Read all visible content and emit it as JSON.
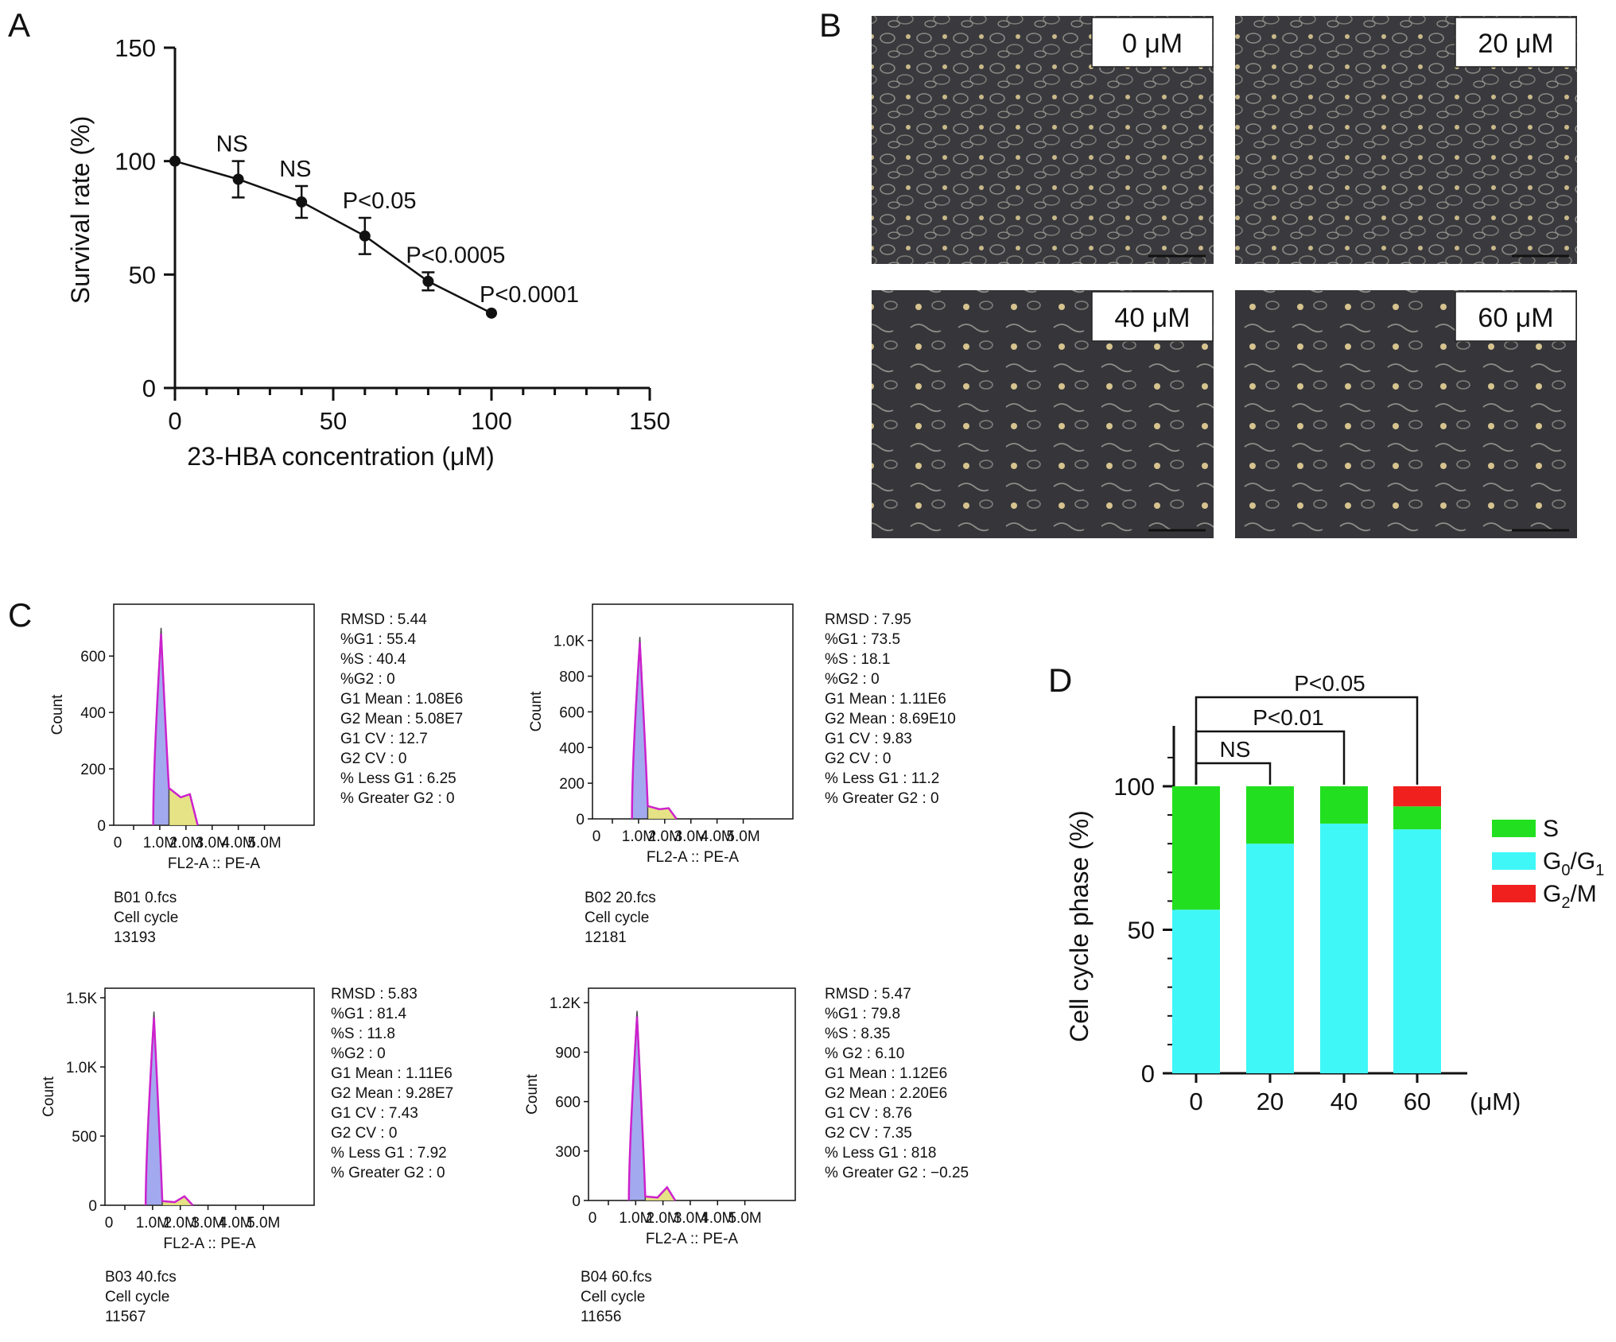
{
  "panels": {
    "A": "A",
    "B": "B",
    "C": "C",
    "D": "D"
  },
  "colors": {
    "s_phase": "#22e01f",
    "g0g1_phase": "#3ff7f7",
    "g2m_phase": "#f0201f",
    "histogram_outline": "#cc22cc",
    "histogram_fill": "#9aa0ee",
    "s_fill_histogram": "#e3e07a",
    "micrograph_bg": "#3a3a3e"
  },
  "micrographs": {
    "labels": [
      "0 μM",
      "20 μM",
      "40 μM",
      "60 μM"
    ]
  },
  "chart_data": [
    {
      "id": "A",
      "type": "line",
      "xlabel": "23-HBA concentration (μM)",
      "ylabel": "Survival rate (%)",
      "xlim": [
        0,
        150
      ],
      "ylim": [
        0,
        150
      ],
      "xticks": [
        "0",
        "50",
        "100",
        "150"
      ],
      "yticks": [
        "0",
        "50",
        "100",
        "150"
      ],
      "x": [
        0,
        20,
        40,
        60,
        80,
        100
      ],
      "y": [
        100,
        92,
        82,
        67,
        47,
        33
      ],
      "error": [
        0,
        8,
        7,
        8,
        4,
        0
      ],
      "annotations": [
        "",
        "NS",
        "NS",
        "P<0.05",
        "P<0.0005",
        "P<0.0001"
      ]
    },
    {
      "id": "C",
      "type": "area",
      "charts": [
        {
          "ylabel": "Count",
          "xlabel": "FL2-A :: PE-A",
          "xticks": [
            "0",
            "1.0M",
            "2.0M",
            "3.0M",
            "4.0M",
            "5.0M"
          ],
          "yticks": [
            "0",
            "200",
            "400",
            "600"
          ],
          "ymax": 750,
          "g1_peak": 700,
          "s_level": 110,
          "g2_peak": 0,
          "stats": [
            "RMSD : 5.44",
            "%G1 : 55.4",
            "%S : 40.4",
            "%G2 : 0",
            "G1 Mean : 1.08E6",
            "G2 Mean : 5.08E7",
            "G1 CV : 12.7",
            "G2 CV : 0",
            "% Less G1 : 6.25",
            "% Greater G2 : 0"
          ],
          "file": [
            "B01 0.fcs",
            "Cell cycle",
            "13193"
          ]
        },
        {
          "ylabel": "Count",
          "xlabel": "FL2-A :: PE-A",
          "xticks": [
            "0",
            "1.0M",
            "2.0M",
            "3.0M",
            "4.0M",
            "5.0M"
          ],
          "yticks": [
            "0",
            "200",
            "400",
            "600",
            "800",
            "1.0K"
          ],
          "ymax": 1150,
          "g1_peak": 1020,
          "s_level": 60,
          "g2_peak": 0,
          "stats": [
            "RMSD : 7.95",
            "%G1 : 73.5",
            "%S : 18.1",
            "%G2 : 0",
            "G1 Mean : 1.11E6",
            "G2 Mean : 8.69E10",
            "G1 CV : 9.83",
            "G2 CV : 0",
            "% Less G1 : 11.2",
            "% Greater G2 : 0"
          ],
          "file": [
            "B02 20.fcs",
            "Cell cycle",
            "12181"
          ]
        },
        {
          "ylabel": "Count",
          "xlabel": "FL2-A :: PE-A",
          "xticks": [
            "0",
            "1.0M",
            "2.0M",
            "3.0M",
            "4.0M",
            "5.0M"
          ],
          "yticks": [
            "0",
            "500",
            "1.0K",
            "1.5K"
          ],
          "ymax": 1500,
          "g1_peak": 1400,
          "s_level": 25,
          "g2_peak": 40,
          "stats": [
            "RMSD : 5.83",
            "%G1 : 81.4",
            "%S : 11.8",
            "%G2 : 0",
            "G1 Mean : 1.11E6",
            "G2 Mean : 9.28E7",
            "G1 CV : 7.43",
            "G2 CV : 0",
            "% Less G1 : 7.92",
            "% Greater G2 : 0"
          ],
          "file": [
            "B03 40.fcs",
            "Cell cycle",
            "11567"
          ]
        },
        {
          "ylabel": "Count",
          "xlabel": "FL2-A :: PE-A",
          "xticks": [
            "0",
            "1.0M",
            "2.0M",
            "3.0M",
            "4.0M",
            "5.0M"
          ],
          "yticks": [
            "0",
            "300",
            "600",
            "900",
            "1.2K"
          ],
          "ymax": 1230,
          "g1_peak": 1150,
          "s_level": 20,
          "g2_peak": 60,
          "stats": [
            "RMSD : 5.47",
            "%G1 : 79.8",
            "%S : 8.35",
            "% G2 : 6.10",
            "G1 Mean : 1.12E6",
            "G2 Mean : 2.20E6",
            "G1 CV : 8.76",
            "G2 CV : 7.35",
            "% Less G1 : 818",
            "% Greater G2 : −0.25"
          ],
          "file": [
            "B04 60.fcs",
            "Cell cycle",
            "11656"
          ]
        }
      ]
    },
    {
      "id": "D",
      "type": "bar",
      "stacked": true,
      "ylabel": "Cell cycle phase (%)",
      "yticks": [
        "0",
        "50",
        "100"
      ],
      "ylim": [
        0,
        120
      ],
      "categories": [
        "0",
        "20",
        "40",
        "60"
      ],
      "unit": "(μM)",
      "series": [
        {
          "name": "G0/G1",
          "values": [
            57,
            80,
            87,
            85
          ]
        },
        {
          "name": "S",
          "values": [
            43,
            20,
            13,
            8
          ]
        },
        {
          "name": "G2/M",
          "values": [
            0,
            0,
            0,
            7
          ]
        }
      ],
      "legend": {
        "s": "S",
        "g0g1_main": "G",
        "g0g1_sub1": "0",
        "g0g1_mid": "/G",
        "g0g1_sub2": "1",
        "g2m_main": "G",
        "g2m_sub": "2",
        "g2m_tail": "/M"
      },
      "brackets": [
        "NS",
        "P<0.01",
        "P<0.05"
      ]
    }
  ]
}
